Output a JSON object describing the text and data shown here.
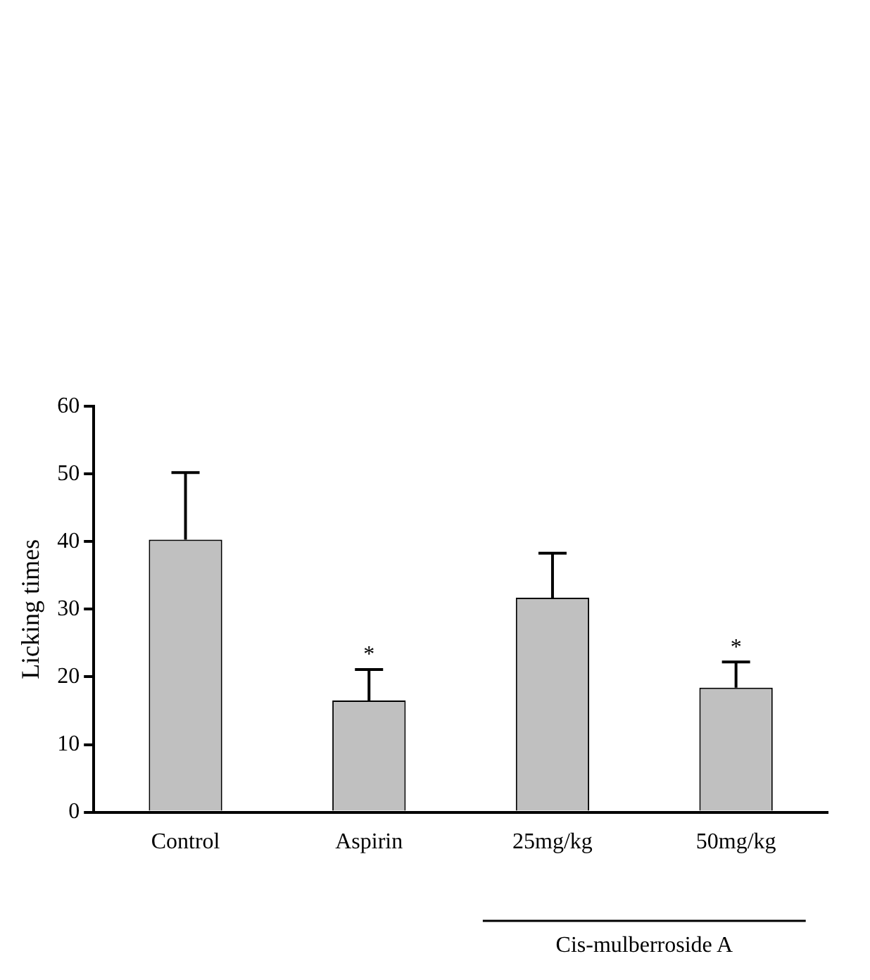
{
  "chart_data": {
    "type": "bar",
    "ylabel": "Licking times",
    "categories": [
      "Control",
      "Aspirin",
      "25mg/kg",
      "50mg/kg"
    ],
    "values": [
      40.3,
      16.5,
      31.7,
      18.4
    ],
    "errors": [
      [
        40.3,
        50.2
      ],
      [
        16.5,
        21.1
      ],
      [
        31.7,
        38.3
      ],
      [
        18.4,
        22.2
      ]
    ],
    "color": "#c0c0c0",
    "ylim": [
      0,
      60
    ],
    "yticks": [
      0,
      10,
      20,
      30,
      40,
      50,
      60
    ],
    "grid": false,
    "legend": false,
    "annotations": [
      {
        "text": "*",
        "x": "Aspirin",
        "y": 21.1
      },
      {
        "text": "*",
        "x": "50mg/kg",
        "y": 22.2
      },
      "Cis-mulberroside A"
    ]
  }
}
